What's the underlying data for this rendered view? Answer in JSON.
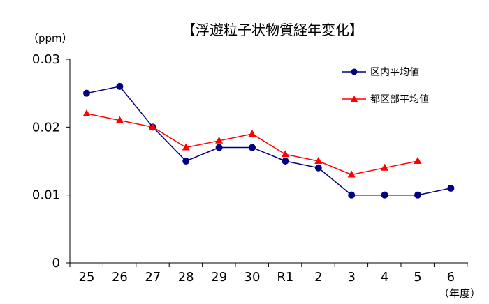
{
  "chart_data": {
    "type": "line",
    "title": "【浮遊粒子状物質経年変化】",
    "ylabel": "（ppm）",
    "xlabel": "（年度）",
    "categories": [
      "25",
      "26",
      "27",
      "28",
      "29",
      "30",
      "R1",
      "2",
      "3",
      "4",
      "5",
      "6"
    ],
    "ylim": [
      0,
      0.03
    ],
    "yticks": [
      0,
      0.01,
      0.02,
      0.03
    ],
    "ytick_labels": [
      "0",
      "0.01",
      "0.02",
      "0.03"
    ],
    "grid": false,
    "legend_position": "top-right",
    "series": [
      {
        "name": "区内平均値",
        "color": "#000080",
        "marker": "circle",
        "values": [
          0.025,
          0.026,
          0.02,
          0.015,
          0.017,
          0.017,
          0.015,
          0.014,
          0.01,
          0.01,
          0.01,
          0.011
        ]
      },
      {
        "name": "都区部平均値",
        "color": "#ff0000",
        "marker": "triangle",
        "values": [
          0.022,
          0.021,
          0.02,
          0.017,
          0.018,
          0.019,
          0.016,
          0.015,
          0.013,
          0.014,
          0.015,
          null
        ]
      }
    ]
  }
}
